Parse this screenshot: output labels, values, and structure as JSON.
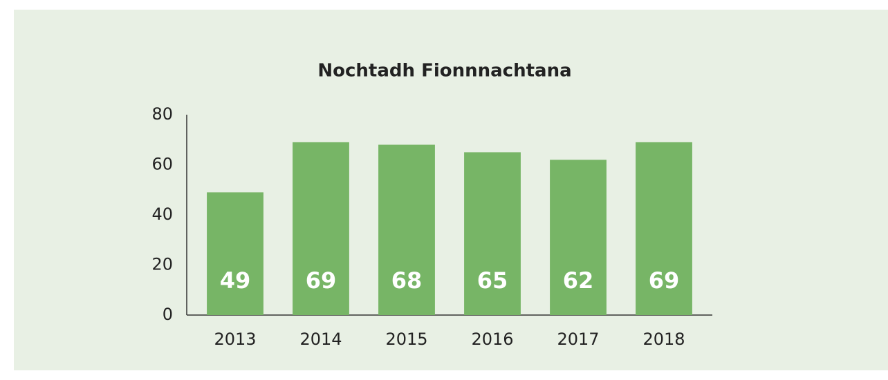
{
  "chart_data": {
    "type": "bar",
    "title": "Nochtadh Fionnnachtana",
    "categories": [
      "2013",
      "2014",
      "2015",
      "2016",
      "2017",
      "2018"
    ],
    "values": [
      49,
      69,
      68,
      65,
      62,
      69
    ],
    "color": "#77b566",
    "ylim": [
      0,
      80
    ],
    "yticks": [
      0,
      20,
      40,
      60,
      80
    ],
    "grid": false
  }
}
